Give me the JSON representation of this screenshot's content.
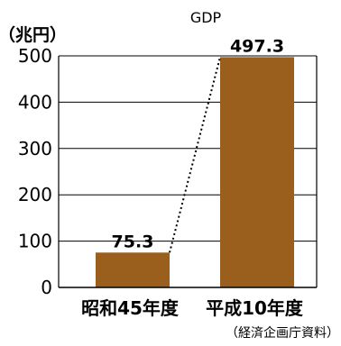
{
  "chart_data": {
    "type": "bar",
    "title": "GDP",
    "unit_label": "（兆円）",
    "categories": [
      "昭和45年度",
      "平成10年度"
    ],
    "values": [
      75.3,
      497.3
    ],
    "value_labels": [
      "75.3",
      "497.3"
    ],
    "ylim": [
      0,
      500
    ],
    "yticks": [
      0,
      100,
      200,
      300,
      400,
      500
    ],
    "grid": true,
    "connector": "dotted",
    "bar_color": "#9a5f1c",
    "source": "（経済企画庁資料）"
  }
}
